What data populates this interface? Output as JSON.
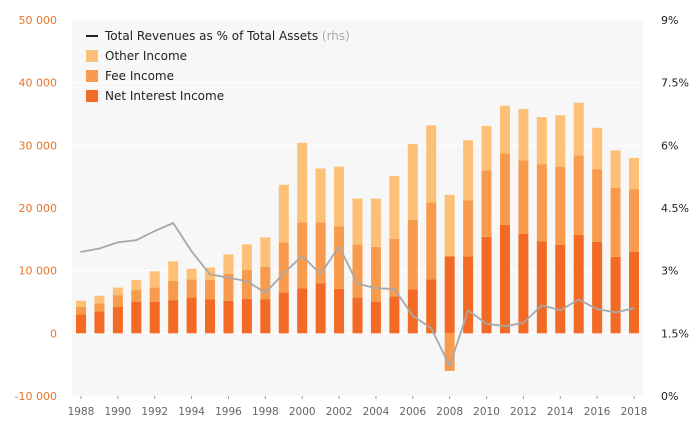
{
  "chart_data": {
    "type": "bar",
    "x": [
      "1988",
      "1989",
      "1990",
      "1991",
      "1992",
      "1993",
      "1994",
      "1995",
      "1996",
      "1997",
      "1998",
      "1999",
      "2000",
      "2001",
      "2002",
      "2003",
      "2004",
      "2005",
      "2006",
      "2007",
      "2008",
      "2009",
      "2010",
      "2011",
      "2012",
      "2013",
      "2014",
      "2015",
      "2016",
      "2017",
      "2018"
    ],
    "x_tick_labels": [
      "1988",
      "1990",
      "1992",
      "1994",
      "1996",
      "1998",
      "2000",
      "2002",
      "2004",
      "2006",
      "2008",
      "2010",
      "2012",
      "2014",
      "2016",
      "2018"
    ],
    "series": [
      {
        "name": "Net Interest Income",
        "kind": "stacked-bar",
        "axis": "left",
        "color": "#f26a24",
        "values": [
          3000,
          3500,
          4200,
          5000,
          5000,
          5300,
          5700,
          5400,
          5200,
          5500,
          5400,
          6500,
          7200,
          8000,
          7100,
          5700,
          5000,
          5900,
          7000,
          8600,
          12300,
          12300,
          15400,
          17300,
          15900,
          14700,
          14100,
          15700,
          14600,
          12200,
          13000
        ]
      },
      {
        "name": "Fee Income",
        "kind": "stacked-bar",
        "axis": "left",
        "color": "#f99b4c",
        "values": [
          1200,
          1300,
          1900,
          1900,
          2300,
          3100,
          2900,
          3100,
          4300,
          4600,
          5200,
          8000,
          10500,
          9700,
          10000,
          8500,
          8800,
          9200,
          11100,
          12300,
          -6000,
          8900,
          10600,
          11400,
          11700,
          12300,
          12500,
          12700,
          11600,
          11000,
          10000
        ]
      },
      {
        "name": "Other Income",
        "kind": "stacked-bar",
        "axis": "left",
        "color": "#fcc077",
        "values": [
          1000,
          1200,
          1200,
          1600,
          2600,
          3100,
          1700,
          2000,
          3100,
          4100,
          4700,
          9200,
          12700,
          8600,
          9500,
          7300,
          7700,
          10000,
          12100,
          12300,
          9800,
          9600,
          7100,
          7600,
          8200,
          7500,
          8200,
          8400,
          6600,
          6000,
          5000
        ]
      },
      {
        "name": "Total Revenues as % of Total Assets",
        "legend_suffix": "(rhs)",
        "kind": "line",
        "axis": "right",
        "color": "#a8a8a8",
        "values": [
          3.45,
          3.53,
          3.68,
          3.73,
          3.95,
          4.14,
          3.46,
          2.91,
          2.83,
          2.75,
          2.47,
          2.94,
          3.35,
          2.92,
          3.58,
          2.69,
          2.58,
          2.56,
          1.92,
          1.62,
          0.72,
          2.05,
          1.73,
          1.67,
          1.75,
          2.17,
          2.05,
          2.31,
          2.08,
          2.0,
          2.1
        ]
      }
    ],
    "y_left": {
      "ticks": [
        -10000,
        0,
        10000,
        20000,
        30000,
        40000,
        50000
      ],
      "tick_labels": [
        "-10 000",
        "0",
        "10 000",
        "20 000",
        "30 000",
        "40 000",
        "50 000"
      ],
      "range": [
        -10000,
        50000
      ],
      "color": "#e8742c"
    },
    "y_right": {
      "ticks": [
        0,
        1.5,
        3,
        4.5,
        6,
        7.5,
        9
      ],
      "tick_labels": [
        "0%",
        "1.5%",
        "3%",
        "4.5%",
        "6%",
        "7.5%",
        "9%"
      ],
      "range": [
        0,
        9
      ]
    },
    "legend": {
      "placement": "top-left",
      "entries": [
        {
          "label": "Total Revenues as % of Total Assets",
          "suffix": "(rhs)",
          "kind": "line",
          "color": "#222222"
        },
        {
          "label": "Other Income",
          "kind": "box",
          "color": "#fcc077"
        },
        {
          "label": "Fee Income",
          "kind": "box",
          "color": "#f99b4c"
        },
        {
          "label": "Net Interest Income",
          "kind": "box",
          "color": "#f26a24"
        }
      ]
    },
    "grid": true,
    "title": "",
    "xlabel": "",
    "ylabel": ""
  }
}
